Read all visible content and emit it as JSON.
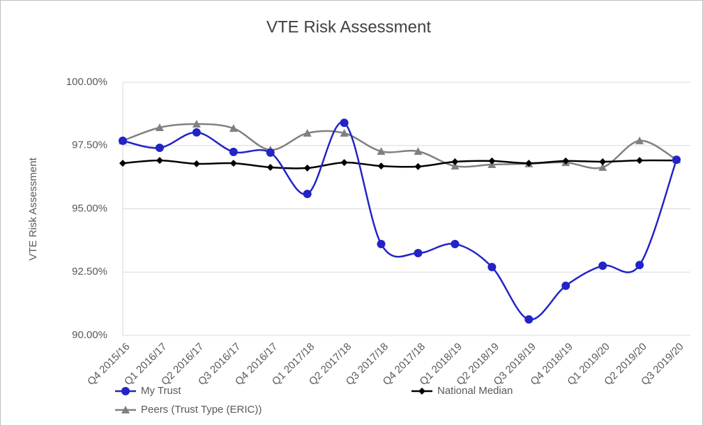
{
  "chart_data": {
    "type": "line",
    "title": "VTE Risk Assessment",
    "y_label": "VTE Risk Assessment",
    "categories": [
      "Q4 2015/16",
      "Q1 2016/17",
      "Q2 2016/17",
      "Q3 2016/17",
      "Q4 2016/17",
      "Q1 2017/18",
      "Q2 2017/18",
      "Q3 2017/18",
      "Q4 2017/18",
      "Q1 2018/19",
      "Q2 2018/19",
      "Q3 2018/19",
      "Q4 2018/19",
      "Q1 2019/20",
      "Q2 2019/20",
      "Q3 2019/20"
    ],
    "series": [
      {
        "name": "My Trust",
        "color": "#2323c8",
        "marker": "circle",
        "values": [
          97.69,
          97.41,
          98.02,
          97.25,
          97.22,
          95.59,
          98.4,
          93.61,
          93.25,
          93.61,
          92.7,
          90.63,
          91.96,
          92.75,
          92.78,
          96.94
        ]
      },
      {
        "name": "National Median",
        "color": "#000000",
        "marker": "diamond",
        "values": [
          96.8,
          96.91,
          96.78,
          96.8,
          96.64,
          96.61,
          96.83,
          96.69,
          96.67,
          96.86,
          96.89,
          96.8,
          96.89,
          96.86,
          96.91,
          96.91
        ]
      },
      {
        "name": "Peers (Trust Type (ERIC))",
        "color": "#808080",
        "marker": "triangle",
        "values": [
          97.69,
          98.21,
          98.35,
          98.18,
          97.33,
          97.99,
          97.99,
          97.27,
          97.27,
          96.69,
          96.75,
          96.78,
          96.83,
          96.64,
          97.69,
          96.94
        ]
      }
    ],
    "ylim": [
      90,
      100
    ],
    "yticks": [
      {
        "value": 90,
        "label": "90.00%"
      },
      {
        "value": 92.5,
        "label": "92.50%"
      },
      {
        "value": 95,
        "label": "95.00%"
      },
      {
        "value": 97.5,
        "label": "97.50%"
      },
      {
        "value": 100,
        "label": "100.00%"
      }
    ],
    "grid": true,
    "legend": "bottom"
  }
}
